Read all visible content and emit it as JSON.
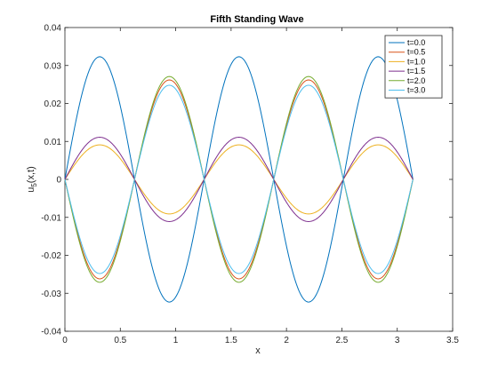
{
  "chart_data": {
    "type": "line",
    "title": "Fifth Standing Wave",
    "xlabel": "x",
    "ylabel_main": "u",
    "ylabel_sub": "5",
    "ylabel_rest": "(x,t)",
    "xlim": [
      0,
      3.5
    ],
    "ylim": [
      -0.04,
      0.04
    ],
    "x_ticks": [
      0,
      0.5,
      1,
      1.5,
      2,
      2.5,
      3,
      3.5
    ],
    "x_tick_labels": [
      "0",
      "0.5",
      "1",
      "1.5",
      "2",
      "2.5",
      "3",
      "3.5"
    ],
    "y_ticks": [
      -0.04,
      -0.03,
      -0.02,
      -0.01,
      0,
      0.01,
      0.02,
      0.03,
      0.04
    ],
    "y_tick_labels": [
      "-0.04",
      "-0.03",
      "-0.02",
      "-0.01",
      "0",
      "0.01",
      "0.02",
      "0.03",
      "0.04"
    ],
    "grid": false,
    "legend_position": "top-right",
    "wave": {
      "mode": 5,
      "x_min": 0,
      "x_max": 3.14159
    },
    "series": [
      {
        "name": "t=0.0",
        "amplitude": 0.0323,
        "color": "#0072BD"
      },
      {
        "name": "t=0.5",
        "amplitude": -0.0262,
        "color": "#D95319"
      },
      {
        "name": "t=1.0",
        "amplitude": 0.0091,
        "color": "#EDB120"
      },
      {
        "name": "t=1.5",
        "amplitude": 0.0111,
        "color": "#7E2F8E"
      },
      {
        "name": "t=2.0",
        "amplitude": -0.0271,
        "color": "#77AC30"
      },
      {
        "name": "t=3.0",
        "amplitude": -0.0248,
        "color": "#4DBEEE"
      }
    ]
  }
}
